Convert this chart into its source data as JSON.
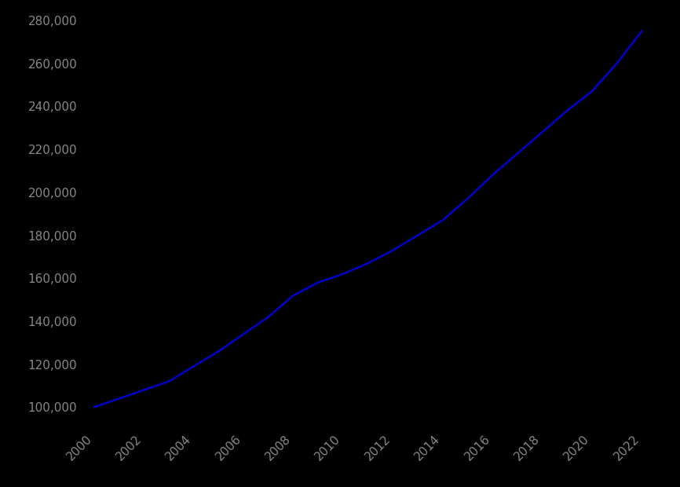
{
  "years": [
    2000,
    2001,
    2002,
    2003,
    2004,
    2005,
    2006,
    2007,
    2008,
    2009,
    2010,
    2011,
    2012,
    2013,
    2014,
    2015,
    2016,
    2017,
    2018,
    2019,
    2020,
    2021,
    2022
  ],
  "prices": [
    100000,
    104000,
    108000,
    112000,
    119000,
    126000,
    134000,
    142000,
    152000,
    158000,
    162000,
    167000,
    173000,
    180000,
    187000,
    197000,
    208000,
    218000,
    228000,
    238000,
    247000,
    260000,
    275000
  ],
  "line_color": "#0000cc",
  "background_color": "#000000",
  "tick_color": "#888888",
  "ylim": [
    90000,
    285000
  ],
  "xlim": [
    1999.5,
    2023.0
  ],
  "yticks": [
    100000,
    120000,
    140000,
    160000,
    180000,
    200000,
    220000,
    240000,
    260000,
    280000
  ],
  "xticks": [
    2000,
    2002,
    2004,
    2006,
    2008,
    2010,
    2012,
    2014,
    2016,
    2018,
    2020,
    2022
  ],
  "line_width": 1.8,
  "tick_fontsize": 11
}
